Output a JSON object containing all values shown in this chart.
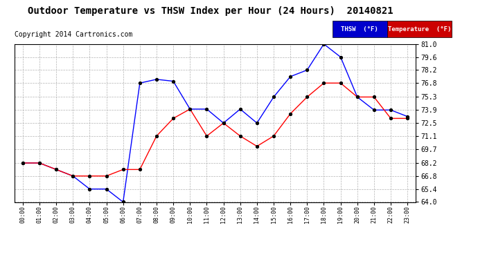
{
  "title": "Outdoor Temperature vs THSW Index per Hour (24 Hours)  20140821",
  "copyright": "Copyright 2014 Cartronics.com",
  "x_labels": [
    "00:00",
    "01:00",
    "02:00",
    "03:00",
    "04:00",
    "05:00",
    "06:00",
    "07:00",
    "08:00",
    "09:00",
    "10:00",
    "11:00",
    "12:00",
    "13:00",
    "14:00",
    "15:00",
    "16:00",
    "17:00",
    "18:00",
    "19:00",
    "20:00",
    "21:00",
    "22:00",
    "23:00"
  ],
  "thsw": [
    68.2,
    68.2,
    67.5,
    66.8,
    65.4,
    65.4,
    64.0,
    76.8,
    77.2,
    77.0,
    74.0,
    74.0,
    72.5,
    74.0,
    72.5,
    75.3,
    77.5,
    78.2,
    81.0,
    79.6,
    75.3,
    73.9,
    73.9,
    73.2
  ],
  "temperature": [
    68.2,
    68.2,
    67.5,
    66.8,
    66.8,
    66.8,
    67.5,
    67.5,
    71.1,
    73.0,
    74.0,
    71.1,
    72.5,
    71.1,
    70.0,
    71.1,
    73.5,
    75.3,
    76.8,
    76.8,
    75.3,
    75.3,
    73.0,
    73.0
  ],
  "thsw_color": "#0000FF",
  "temp_color": "#FF0000",
  "bg_color": "#FFFFFF",
  "plot_bg_color": "#FFFFFF",
  "grid_color": "#AAAAAA",
  "ylim": [
    64.0,
    81.0
  ],
  "yticks": [
    64.0,
    65.4,
    66.8,
    68.2,
    69.7,
    71.1,
    72.5,
    73.9,
    75.3,
    76.8,
    78.2,
    79.6,
    81.0
  ],
  "thsw_label": "THSW  (°F)",
  "temp_label": "Temperature  (°F)",
  "thsw_legend_color": "#0000CC",
  "temp_legend_color": "#CC0000",
  "title_fontsize": 10,
  "copyright_fontsize": 7,
  "tick_fontsize": 7,
  "xtick_fontsize": 6
}
